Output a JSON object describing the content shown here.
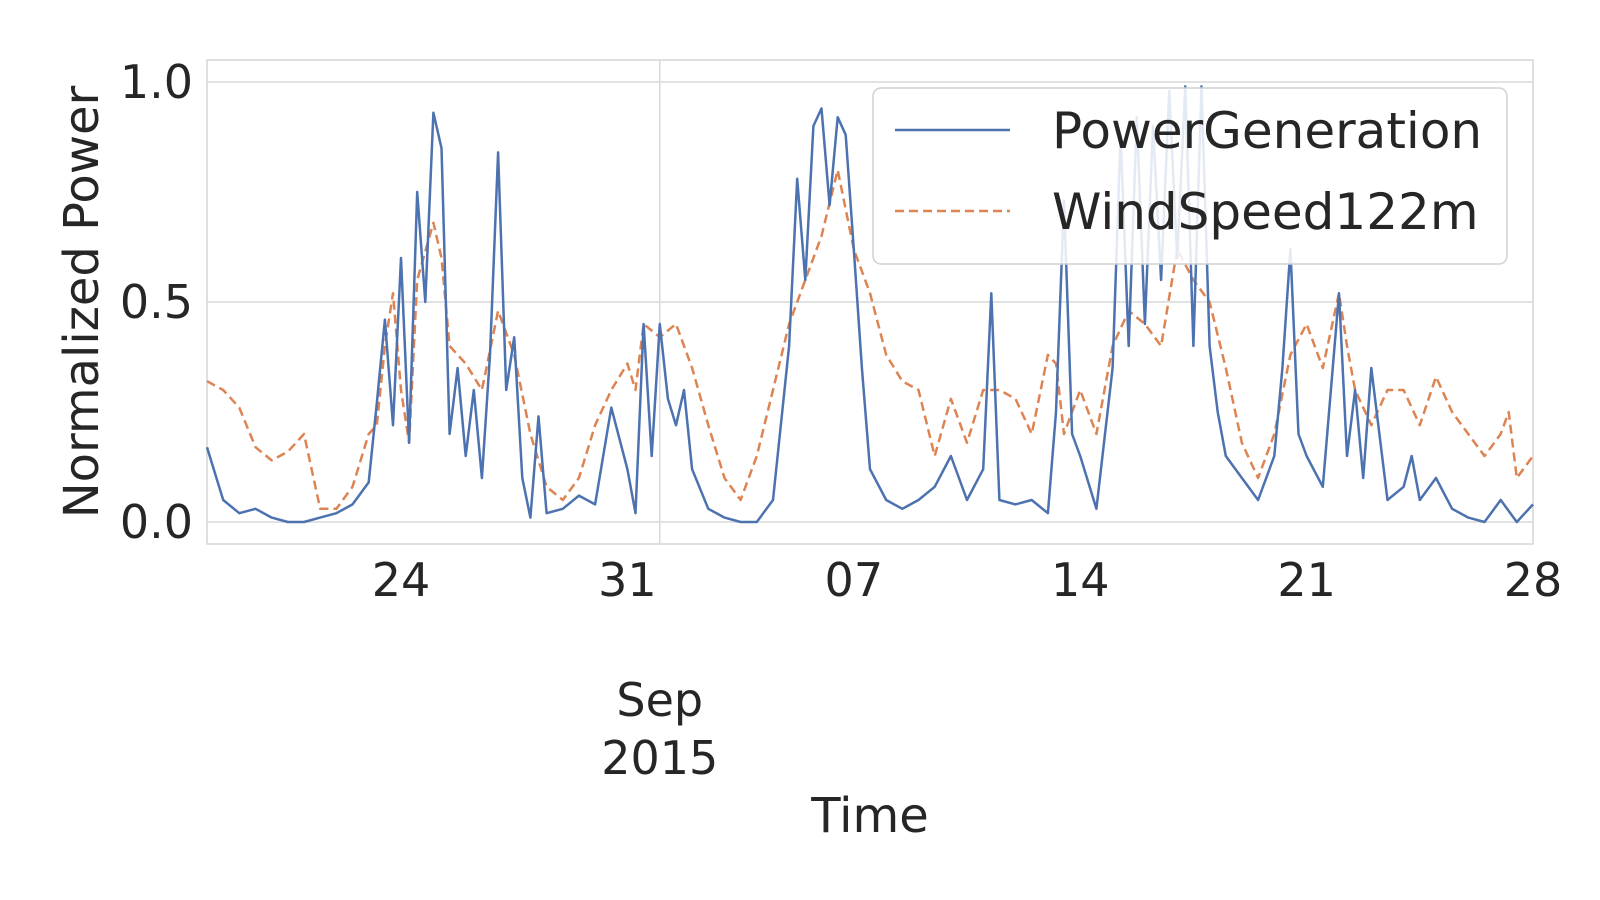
{
  "chart_data": {
    "type": "line",
    "title": "",
    "xlabel": "Time",
    "ylabel": "Normalized Power",
    "x_range": [
      "2015-08-18",
      "2015-09-28"
    ],
    "ylim": [
      -0.05,
      1.05
    ],
    "x_ticks": [
      {
        "date": "2015-08-24",
        "label": "24"
      },
      {
        "date": "2015-08-31",
        "label": "31"
      },
      {
        "date": "2015-09-07",
        "label": "07"
      },
      {
        "date": "2015-09-14",
        "label": "14"
      },
      {
        "date": "2015-09-21",
        "label": "21"
      },
      {
        "date": "2015-09-28",
        "label": "28"
      }
    ],
    "x_month_label": {
      "date": "2015-09-01",
      "line1": "Sep",
      "line2": "2015"
    },
    "y_ticks": [
      {
        "value": 0.0,
        "label": "0.0"
      },
      {
        "value": 0.5,
        "label": "0.5"
      },
      {
        "value": 1.0,
        "label": "1.0"
      }
    ],
    "grid": true,
    "legend_position": "top-right",
    "series": [
      {
        "name": "PowerGeneration",
        "color": "#4c72b0",
        "style": "solid",
        "points": [
          [
            "2015-08-18",
            0.17
          ],
          [
            "2015-08-18T12:00",
            0.05
          ],
          [
            "2015-08-19",
            0.02
          ],
          [
            "2015-08-19T12:00",
            0.03
          ],
          [
            "2015-08-20",
            0.01
          ],
          [
            "2015-08-20T12:00",
            0.0
          ],
          [
            "2015-08-21",
            0.0
          ],
          [
            "2015-08-21T12:00",
            0.01
          ],
          [
            "2015-08-22",
            0.02
          ],
          [
            "2015-08-22T12:00",
            0.04
          ],
          [
            "2015-08-23",
            0.09
          ],
          [
            "2015-08-23T06:00",
            0.27
          ],
          [
            "2015-08-23T12:00",
            0.46
          ],
          [
            "2015-08-23T18:00",
            0.22
          ],
          [
            "2015-08-24",
            0.6
          ],
          [
            "2015-08-24T06:00",
            0.18
          ],
          [
            "2015-08-24T12:00",
            0.75
          ],
          [
            "2015-08-24T18:00",
            0.5
          ],
          [
            "2015-08-25",
            0.93
          ],
          [
            "2015-08-25T06:00",
            0.85
          ],
          [
            "2015-08-25T12:00",
            0.2
          ],
          [
            "2015-08-25T18:00",
            0.35
          ],
          [
            "2015-08-26",
            0.15
          ],
          [
            "2015-08-26T06:00",
            0.3
          ],
          [
            "2015-08-26T12:00",
            0.1
          ],
          [
            "2015-08-26T18:00",
            0.38
          ],
          [
            "2015-08-27",
            0.84
          ],
          [
            "2015-08-27T06:00",
            0.3
          ],
          [
            "2015-08-27T12:00",
            0.42
          ],
          [
            "2015-08-27T18:00",
            0.1
          ],
          [
            "2015-08-28",
            0.01
          ],
          [
            "2015-08-28T06:00",
            0.24
          ],
          [
            "2015-08-28T12:00",
            0.02
          ],
          [
            "2015-08-29",
            0.03
          ],
          [
            "2015-08-29T12:00",
            0.06
          ],
          [
            "2015-08-30",
            0.04
          ],
          [
            "2015-08-30T12:00",
            0.26
          ],
          [
            "2015-08-31",
            0.12
          ],
          [
            "2015-08-31T06:00",
            0.02
          ],
          [
            "2015-08-31T12:00",
            0.45
          ],
          [
            "2015-08-31T18:00",
            0.15
          ],
          [
            "2015-09-01",
            0.45
          ],
          [
            "2015-09-01T06:00",
            0.28
          ],
          [
            "2015-09-01T12:00",
            0.22
          ],
          [
            "2015-09-01T18:00",
            0.3
          ],
          [
            "2015-09-02",
            0.12
          ],
          [
            "2015-09-02T12:00",
            0.03
          ],
          [
            "2015-09-03",
            0.01
          ],
          [
            "2015-09-03T12:00",
            0.0
          ],
          [
            "2015-09-04",
            0.0
          ],
          [
            "2015-09-04T12:00",
            0.05
          ],
          [
            "2015-09-05",
            0.4
          ],
          [
            "2015-09-05T06:00",
            0.78
          ],
          [
            "2015-09-05T12:00",
            0.55
          ],
          [
            "2015-09-05T18:00",
            0.9
          ],
          [
            "2015-09-06",
            0.94
          ],
          [
            "2015-09-06T06:00",
            0.72
          ],
          [
            "2015-09-06T12:00",
            0.92
          ],
          [
            "2015-09-06T18:00",
            0.88
          ],
          [
            "2015-09-07",
            0.62
          ],
          [
            "2015-09-07T06:00",
            0.35
          ],
          [
            "2015-09-07T12:00",
            0.12
          ],
          [
            "2015-09-08",
            0.05
          ],
          [
            "2015-09-08T12:00",
            0.03
          ],
          [
            "2015-09-09",
            0.05
          ],
          [
            "2015-09-09T12:00",
            0.08
          ],
          [
            "2015-09-10",
            0.15
          ],
          [
            "2015-09-10T12:00",
            0.05
          ],
          [
            "2015-09-11",
            0.12
          ],
          [
            "2015-09-11T06:00",
            0.52
          ],
          [
            "2015-09-11T12:00",
            0.05
          ],
          [
            "2015-09-12",
            0.04
          ],
          [
            "2015-09-12T12:00",
            0.05
          ],
          [
            "2015-09-13",
            0.02
          ],
          [
            "2015-09-13T06:00",
            0.25
          ],
          [
            "2015-09-13T12:00",
            0.73
          ],
          [
            "2015-09-13T18:00",
            0.2
          ],
          [
            "2015-09-14",
            0.15
          ],
          [
            "2015-09-14T12:00",
            0.03
          ],
          [
            "2015-09-15",
            0.35
          ],
          [
            "2015-09-15T06:00",
            0.88
          ],
          [
            "2015-09-15T12:00",
            0.4
          ],
          [
            "2015-09-15T18:00",
            0.92
          ],
          [
            "2015-09-16",
            0.45
          ],
          [
            "2015-09-16T06:00",
            0.9
          ],
          [
            "2015-09-16T12:00",
            0.55
          ],
          [
            "2015-09-16T18:00",
            0.98
          ],
          [
            "2015-09-17",
            0.6
          ],
          [
            "2015-09-17T06:00",
            0.99
          ],
          [
            "2015-09-17T12:00",
            0.4
          ],
          [
            "2015-09-17T18:00",
            0.99
          ],
          [
            "2015-09-18",
            0.4
          ],
          [
            "2015-09-18T06:00",
            0.25
          ],
          [
            "2015-09-18T12:00",
            0.15
          ],
          [
            "2015-09-19",
            0.1
          ],
          [
            "2015-09-19T12:00",
            0.05
          ],
          [
            "2015-09-20",
            0.15
          ],
          [
            "2015-09-20T06:00",
            0.35
          ],
          [
            "2015-09-20T12:00",
            0.62
          ],
          [
            "2015-09-20T18:00",
            0.2
          ],
          [
            "2015-09-21",
            0.15
          ],
          [
            "2015-09-21T12:00",
            0.08
          ],
          [
            "2015-09-22",
            0.52
          ],
          [
            "2015-09-22T06:00",
            0.15
          ],
          [
            "2015-09-22T12:00",
            0.3
          ],
          [
            "2015-09-22T18:00",
            0.1
          ],
          [
            "2015-09-23",
            0.35
          ],
          [
            "2015-09-23T12:00",
            0.05
          ],
          [
            "2015-09-24",
            0.08
          ],
          [
            "2015-09-24T06:00",
            0.15
          ],
          [
            "2015-09-24T12:00",
            0.05
          ],
          [
            "2015-09-25",
            0.1
          ],
          [
            "2015-09-25T12:00",
            0.03
          ],
          [
            "2015-09-26",
            0.01
          ],
          [
            "2015-09-26T12:00",
            0.0
          ],
          [
            "2015-09-27",
            0.05
          ],
          [
            "2015-09-27T12:00",
            0.0
          ],
          [
            "2015-09-28",
            0.04
          ]
        ]
      },
      {
        "name": "WindSpeed122m",
        "color": "#dd8452",
        "style": "dashed",
        "points": [
          [
            "2015-08-18",
            0.32
          ],
          [
            "2015-08-18T12:00",
            0.3
          ],
          [
            "2015-08-19",
            0.26
          ],
          [
            "2015-08-19T12:00",
            0.17
          ],
          [
            "2015-08-20",
            0.14
          ],
          [
            "2015-08-20T12:00",
            0.16
          ],
          [
            "2015-08-21",
            0.2
          ],
          [
            "2015-08-21T12:00",
            0.03
          ],
          [
            "2015-08-22",
            0.03
          ],
          [
            "2015-08-22T12:00",
            0.08
          ],
          [
            "2015-08-23",
            0.2
          ],
          [
            "2015-08-23T06:00",
            0.22
          ],
          [
            "2015-08-23T12:00",
            0.4
          ],
          [
            "2015-08-23T18:00",
            0.52
          ],
          [
            "2015-08-24",
            0.3
          ],
          [
            "2015-08-24T06:00",
            0.18
          ],
          [
            "2015-08-24T12:00",
            0.55
          ],
          [
            "2015-08-25",
            0.68
          ],
          [
            "2015-08-25T06:00",
            0.6
          ],
          [
            "2015-08-25T12:00",
            0.4
          ],
          [
            "2015-08-26",
            0.36
          ],
          [
            "2015-08-26T12:00",
            0.3
          ],
          [
            "2015-08-27",
            0.48
          ],
          [
            "2015-08-27T12:00",
            0.38
          ],
          [
            "2015-08-28",
            0.2
          ],
          [
            "2015-08-28T12:00",
            0.08
          ],
          [
            "2015-08-29",
            0.05
          ],
          [
            "2015-08-29T12:00",
            0.1
          ],
          [
            "2015-08-30",
            0.22
          ],
          [
            "2015-08-30T12:00",
            0.3
          ],
          [
            "2015-08-31",
            0.36
          ],
          [
            "2015-08-31T06:00",
            0.3
          ],
          [
            "2015-08-31T12:00",
            0.45
          ],
          [
            "2015-09-01",
            0.42
          ],
          [
            "2015-09-01T12:00",
            0.45
          ],
          [
            "2015-09-02",
            0.35
          ],
          [
            "2015-09-02T12:00",
            0.22
          ],
          [
            "2015-09-03",
            0.1
          ],
          [
            "2015-09-03T12:00",
            0.05
          ],
          [
            "2015-09-04",
            0.15
          ],
          [
            "2015-09-04T12:00",
            0.3
          ],
          [
            "2015-09-05",
            0.45
          ],
          [
            "2015-09-05T12:00",
            0.55
          ],
          [
            "2015-09-06",
            0.65
          ],
          [
            "2015-09-06T12:00",
            0.8
          ],
          [
            "2015-09-07",
            0.62
          ],
          [
            "2015-09-07T12:00",
            0.52
          ],
          [
            "2015-09-08",
            0.38
          ],
          [
            "2015-09-08T12:00",
            0.32
          ],
          [
            "2015-09-09",
            0.3
          ],
          [
            "2015-09-09T12:00",
            0.15
          ],
          [
            "2015-09-10",
            0.28
          ],
          [
            "2015-09-10T12:00",
            0.18
          ],
          [
            "2015-09-11",
            0.3
          ],
          [
            "2015-09-11T12:00",
            0.3
          ],
          [
            "2015-09-12",
            0.28
          ],
          [
            "2015-09-12T12:00",
            0.2
          ],
          [
            "2015-09-13",
            0.38
          ],
          [
            "2015-09-13T06:00",
            0.36
          ],
          [
            "2015-09-13T12:00",
            0.2
          ],
          [
            "2015-09-14",
            0.3
          ],
          [
            "2015-09-14T12:00",
            0.2
          ],
          [
            "2015-09-15",
            0.4
          ],
          [
            "2015-09-15T12:00",
            0.48
          ],
          [
            "2015-09-16",
            0.45
          ],
          [
            "2015-09-16T12:00",
            0.4
          ],
          [
            "2015-09-17",
            0.62
          ],
          [
            "2015-09-17T12:00",
            0.55
          ],
          [
            "2015-09-18",
            0.5
          ],
          [
            "2015-09-18T12:00",
            0.35
          ],
          [
            "2015-09-19",
            0.18
          ],
          [
            "2015-09-19T12:00",
            0.1
          ],
          [
            "2015-09-20",
            0.2
          ],
          [
            "2015-09-20T12:00",
            0.38
          ],
          [
            "2015-09-21",
            0.45
          ],
          [
            "2015-09-21T12:00",
            0.35
          ],
          [
            "2015-09-22",
            0.52
          ],
          [
            "2015-09-22T06:00",
            0.4
          ],
          [
            "2015-09-22T12:00",
            0.3
          ],
          [
            "2015-09-23",
            0.22
          ],
          [
            "2015-09-23T12:00",
            0.3
          ],
          [
            "2015-09-24",
            0.3
          ],
          [
            "2015-09-24T12:00",
            0.22
          ],
          [
            "2015-09-25",
            0.33
          ],
          [
            "2015-09-25T12:00",
            0.25
          ],
          [
            "2015-09-26",
            0.2
          ],
          [
            "2015-09-26T12:00",
            0.15
          ],
          [
            "2015-09-27",
            0.2
          ],
          [
            "2015-09-27T06:00",
            0.25
          ],
          [
            "2015-09-27T12:00",
            0.1
          ],
          [
            "2015-09-28",
            0.15
          ]
        ]
      }
    ]
  }
}
